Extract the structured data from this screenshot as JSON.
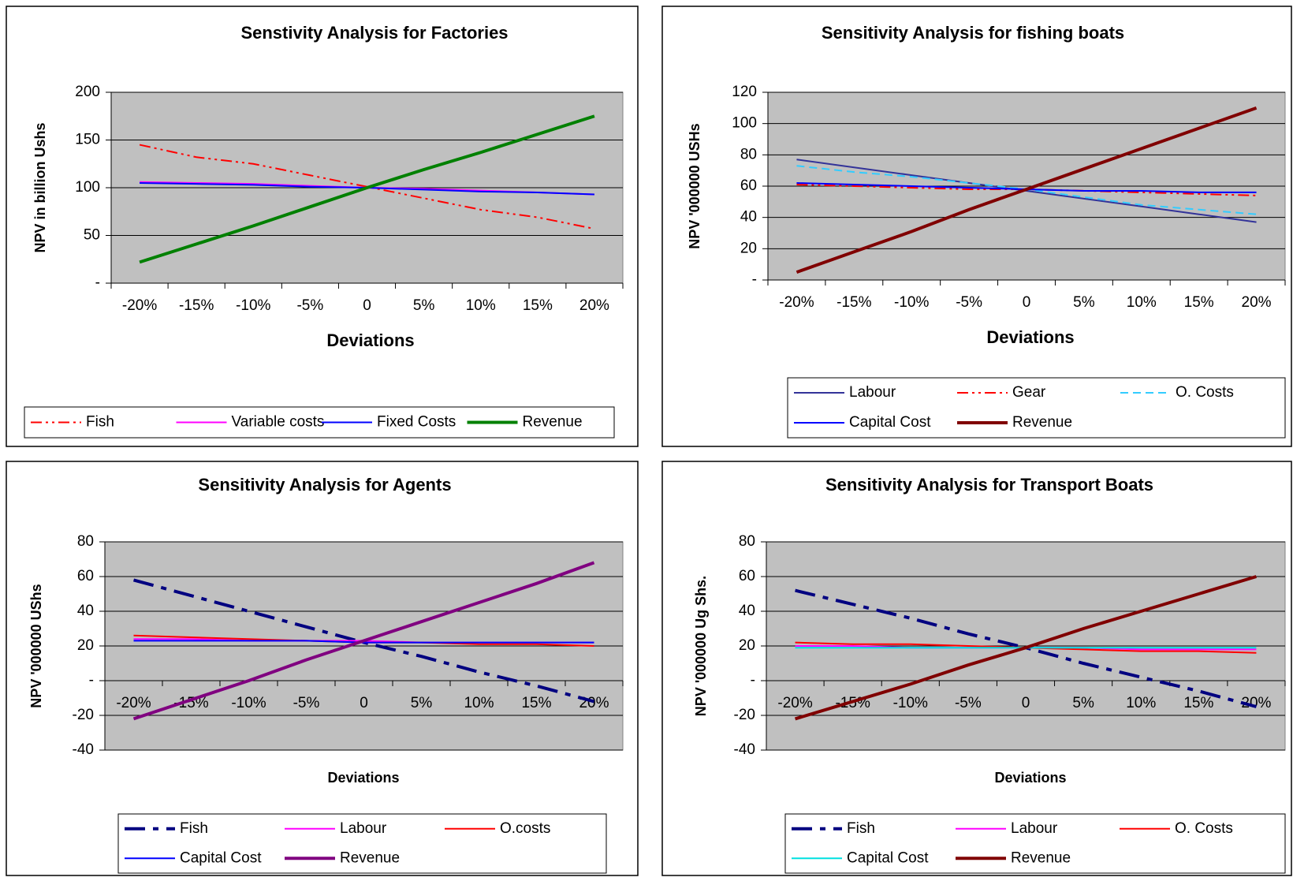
{
  "chart_data": [
    {
      "type": "line",
      "title": "Senstivity Analysis for Factories",
      "x_label": "Deviations",
      "y_label": "NPV in billion Ushs",
      "categories": [
        "-20%",
        "-15%",
        "-10%",
        "-5%",
        "0",
        "5%",
        "10%",
        "15%",
        "20%"
      ],
      "ylim": [
        0,
        200
      ],
      "yticks": [
        {
          "value": 0,
          "label": "-"
        },
        50,
        100,
        150,
        200
      ],
      "grid": true,
      "series": [
        {
          "name": "Fish",
          "color": "#ff0000",
          "style": "dash-dot-dot",
          "weight": "thin",
          "values": [
            145,
            132,
            125,
            113,
            101,
            89,
            77,
            69,
            57
          ]
        },
        {
          "name": "Variable costs",
          "color": "#ff00ff",
          "style": "solid",
          "weight": "thin",
          "values": [
            106,
            105,
            104,
            102,
            100,
            99,
            97,
            95,
            93
          ]
        },
        {
          "name": "Fixed Costs",
          "color": "#0000ff",
          "style": "solid",
          "weight": "thin",
          "values": [
            105,
            104,
            103,
            101,
            100,
            98,
            96,
            95,
            93
          ]
        },
        {
          "name": "Revenue",
          "color": "#008000",
          "style": "solid",
          "weight": "thick",
          "values": [
            22,
            41,
            60,
            80,
            100,
            119,
            137,
            156,
            175
          ]
        }
      ]
    },
    {
      "type": "line",
      "title": "Sensitivity Analysis for fishing boats",
      "x_label": "Deviations",
      "y_label": "NPV '000000 USHs",
      "categories": [
        "-20%",
        "-15%",
        "-10%",
        "-5%",
        "0",
        "5%",
        "10%",
        "15%",
        "20%"
      ],
      "ylim": [
        0,
        120
      ],
      "yticks": [
        {
          "value": 0,
          "label": "-"
        },
        20,
        40,
        60,
        80,
        100,
        120
      ],
      "grid": true,
      "series": [
        {
          "name": "Labour",
          "color": "#333399",
          "style": "solid",
          "weight": "thin",
          "values": [
            77,
            72,
            67,
            62,
            57,
            52,
            47,
            42,
            37
          ]
        },
        {
          "name": "Gear",
          "color": "#ff0000",
          "style": "dash-dot-dot",
          "weight": "thin",
          "values": [
            61,
            60,
            59,
            58,
            58,
            57,
            56,
            55,
            54
          ]
        },
        {
          "name": "O. Costs",
          "color": "#33ccff",
          "style": "dash",
          "weight": "thin",
          "values": [
            73,
            69,
            66,
            62,
            58,
            53,
            48,
            45,
            42
          ]
        },
        {
          "name": "Capital Cost",
          "color": "#0000ff",
          "style": "solid",
          "weight": "thin",
          "values": [
            62,
            61,
            60,
            59,
            58,
            57,
            57,
            56,
            56
          ]
        },
        {
          "name": "Revenue",
          "color": "#800000",
          "style": "solid",
          "weight": "thick",
          "values": [
            5,
            18,
            31,
            45,
            58,
            71,
            84,
            97,
            110
          ]
        }
      ]
    },
    {
      "type": "line",
      "title": "Sensitivity Analysis for Agents",
      "x_label": "Deviations",
      "y_label": "NPV '000000 UShs",
      "categories": [
        "-20%",
        "-15%",
        "-10%",
        "-5%",
        "0",
        "5%",
        "10%",
        "15%",
        "20%"
      ],
      "ylim": [
        -40,
        80
      ],
      "yticks": [
        -40,
        -20,
        {
          "value": 0,
          "label": "-"
        },
        20,
        40,
        60,
        80
      ],
      "grid": true,
      "series": [
        {
          "name": "Fish",
          "color": "#000080",
          "style": "long-dash-dot",
          "weight": "thick",
          "values": [
            58,
            49,
            40,
            31,
            22,
            14,
            5,
            -3,
            -12
          ]
        },
        {
          "name": "Labour",
          "color": "#ff00ff",
          "style": "solid",
          "weight": "thin",
          "values": [
            24,
            24,
            23,
            23,
            23,
            22,
            22,
            22,
            22
          ]
        },
        {
          "name": "O.costs",
          "color": "#ff0000",
          "style": "solid",
          "weight": "thin",
          "values": [
            26,
            25,
            24,
            23,
            22,
            22,
            21,
            21,
            20
          ]
        },
        {
          "name": "Capital Cost",
          "color": "#0000ff",
          "style": "solid",
          "weight": "thin",
          "values": [
            23,
            23,
            23,
            23,
            22,
            22,
            22,
            22,
            22
          ]
        },
        {
          "name": "Revenue",
          "color": "#800080",
          "style": "solid",
          "weight": "thick",
          "values": [
            -22,
            -11,
            0,
            12,
            23,
            34,
            45,
            56,
            68
          ]
        }
      ]
    },
    {
      "type": "line",
      "title": "Sensitivity Analysis for Transport Boats",
      "x_label": "Deviations",
      "y_label": "NPV '000000 Ug Shs.",
      "categories": [
        "-20%",
        "-15%",
        "-10%",
        "-5%",
        "0",
        "5%",
        "10%",
        "15%",
        "20%"
      ],
      "ylim": [
        -40,
        80
      ],
      "yticks": [
        -40,
        -20,
        {
          "value": 0,
          "label": "-"
        },
        20,
        40,
        60,
        80
      ],
      "grid": true,
      "series": [
        {
          "name": "Fish",
          "color": "#000080",
          "style": "long-dash-dot",
          "weight": "thick",
          "values": [
            52,
            44,
            36,
            27,
            19,
            10,
            2,
            -6,
            -15
          ]
        },
        {
          "name": "Labour",
          "color": "#ff00ff",
          "style": "solid",
          "weight": "thin",
          "values": [
            20,
            20,
            19,
            19,
            19,
            19,
            18,
            18,
            18
          ]
        },
        {
          "name": "O. Costs",
          "color": "#ff0000",
          "style": "solid",
          "weight": "thin",
          "values": [
            22,
            21,
            21,
            20,
            19,
            18,
            17,
            17,
            16
          ]
        },
        {
          "name": "Capital Cost",
          "color": "#00e0e0",
          "style": "solid",
          "weight": "thin",
          "values": [
            19,
            19,
            19,
            19,
            19,
            19,
            19,
            19,
            19
          ]
        },
        {
          "name": "Revenue",
          "color": "#800000",
          "style": "solid",
          "weight": "thick",
          "values": [
            -22,
            -12,
            -2,
            9,
            19,
            30,
            40,
            50,
            60
          ]
        }
      ]
    }
  ]
}
